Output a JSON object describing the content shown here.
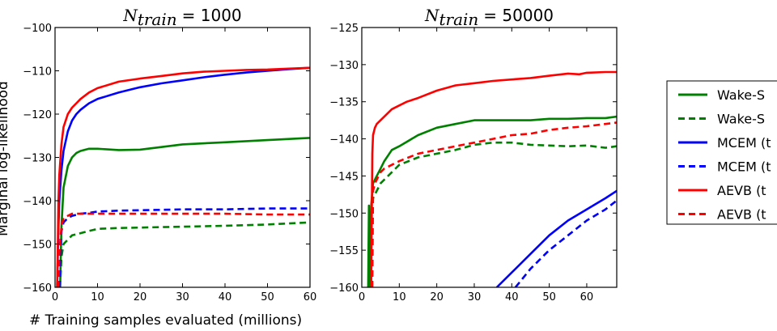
{
  "chart_data": [
    {
      "type": "line",
      "title_var": "N",
      "title_sub": "train",
      "title_value": "= 1000",
      "xlabel": "# Training samples evaluated (millions)",
      "ylabel": "Marginal log-likelihood",
      "xlim": [
        0,
        60
      ],
      "ylim": [
        -160,
        -100
      ],
      "xticks": [
        0,
        10,
        20,
        30,
        40,
        50,
        60
      ],
      "yticks": [
        -160,
        -150,
        -140,
        -130,
        -120,
        -110,
        -100
      ],
      "grid": false,
      "series": [
        {
          "name": "Wake-Sleep (test)",
          "color": "#008000",
          "dash": false,
          "x": [
            1.2,
            1.5,
            2,
            3,
            4,
            5,
            6,
            8,
            10,
            15,
            20,
            25,
            30,
            40,
            50,
            60
          ],
          "y": [
            -160,
            -146,
            -137,
            -132,
            -130,
            -129,
            -128.5,
            -128,
            -128,
            -128.3,
            -128.2,
            -127.6,
            -127,
            -126.5,
            -126,
            -125.5
          ]
        },
        {
          "name": "Wake-Sleep (train)",
          "color": "#008000",
          "dash": true,
          "x": [
            1.2,
            1.5,
            2,
            3,
            4,
            6,
            8,
            10,
            15,
            20,
            30,
            40,
            50,
            60
          ],
          "y": [
            -160,
            -153,
            -150,
            -149,
            -148,
            -147.5,
            -147,
            -146.5,
            -146.3,
            -146.2,
            -146,
            -145.8,
            -145.5,
            -145
          ]
        },
        {
          "name": "MCEM (test)",
          "color": "#0000ff",
          "dash": false,
          "x": [
            0.5,
            0.8,
            1,
            1.5,
            2,
            3,
            4,
            5,
            6,
            8,
            10,
            15,
            20,
            25,
            30,
            35,
            40,
            45,
            50,
            55,
            60
          ],
          "y": [
            -160,
            -146,
            -140,
            -133,
            -128.5,
            -124,
            -121.5,
            -120,
            -119,
            -117.5,
            -116.5,
            -115,
            -113.8,
            -112.9,
            -112.2,
            -111.5,
            -110.9,
            -110.4,
            -110,
            -109.6,
            -109.3
          ]
        },
        {
          "name": "MCEM (train)",
          "color": "#0000ff",
          "dash": true,
          "x": [
            1,
            1.5,
            2,
            3,
            4,
            6,
            8,
            10,
            15,
            20,
            30,
            40,
            50,
            60
          ],
          "y": [
            -160,
            -147,
            -145,
            -144,
            -143.5,
            -143,
            -142.8,
            -142.5,
            -142.3,
            -142.2,
            -142,
            -142,
            -141.8,
            -141.8
          ]
        },
        {
          "name": "AEVB (test)",
          "color": "#ff0000",
          "dash": false,
          "x": [
            0.5,
            0.8,
            1,
            1.5,
            2,
            3,
            4,
            5,
            6,
            8,
            10,
            15,
            20,
            25,
            30,
            35,
            40,
            45,
            50,
            55,
            60
          ],
          "y": [
            -160,
            -140,
            -134,
            -127,
            -123,
            -120,
            -118.5,
            -117.5,
            -116.5,
            -115,
            -114,
            -112.5,
            -111.8,
            -111.2,
            -110.6,
            -110.2,
            -110,
            -109.8,
            -109.7,
            -109.5,
            -109.3
          ]
        },
        {
          "name": "AEVB (train)",
          "color": "#ff0000",
          "dash": true,
          "x": [
            0.8,
            1,
            1.5,
            2,
            3,
            4,
            6,
            8,
            10,
            15,
            20,
            30,
            40,
            50,
            60
          ],
          "y": [
            -160,
            -152,
            -146,
            -144,
            -143.5,
            -143,
            -143,
            -143,
            -143,
            -143,
            -143,
            -143,
            -143,
            -143.2,
            -143.2
          ]
        }
      ]
    },
    {
      "type": "line",
      "title_var": "N",
      "title_sub": "train",
      "title_value": "= 50000",
      "xlim": [
        0,
        68
      ],
      "ylim": [
        -160,
        -125
      ],
      "xticks": [
        0,
        10,
        20,
        30,
        40,
        50,
        60
      ],
      "yticks": [
        -160,
        -155,
        -150,
        -145,
        -140,
        -135,
        -130,
        -125
      ],
      "grid": false,
      "series": [
        {
          "name": "Wake-Sleep (test)",
          "color": "#008000",
          "dash": false,
          "x": [
            1.7,
            1.9,
            2.2,
            2.5,
            3,
            4,
            5,
            6,
            8,
            10,
            15,
            20,
            25,
            30,
            35,
            40,
            45,
            50,
            55,
            60,
            65,
            68
          ],
          "y": [
            -160,
            -149,
            -160,
            -149,
            -146,
            -145,
            -144,
            -143,
            -141.5,
            -141,
            -139.5,
            -138.5,
            -138,
            -137.5,
            -137.5,
            -137.5,
            -137.5,
            -137.3,
            -137.3,
            -137.2,
            -137.2,
            -137
          ]
        },
        {
          "name": "Wake-Sleep (train)",
          "color": "#008000",
          "dash": true,
          "x": [
            2.5,
            2.8,
            3,
            4,
            5,
            6,
            8,
            10,
            15,
            20,
            25,
            30,
            35,
            40,
            45,
            50,
            55,
            60,
            65,
            68
          ],
          "y": [
            -160,
            -150,
            -148,
            -147,
            -146,
            -145.5,
            -144.5,
            -143.5,
            -142.5,
            -142,
            -141.5,
            -140.8,
            -140.5,
            -140.5,
            -140.8,
            -140.9,
            -141,
            -140.9,
            -141.2,
            -141
          ]
        },
        {
          "name": "MCEM (test)",
          "color": "#0000ff",
          "dash": false,
          "x": [
            36,
            40,
            45,
            50,
            55,
            60,
            65,
            68
          ],
          "y": [
            -160,
            -158,
            -155.5,
            -153,
            -151,
            -149.5,
            -148,
            -147
          ]
        },
        {
          "name": "MCEM (train)",
          "color": "#0000ff",
          "dash": true,
          "x": [
            41,
            45,
            50,
            55,
            60,
            65,
            68
          ],
          "y": [
            -160,
            -157.5,
            -155,
            -153,
            -151,
            -149.5,
            -148.3
          ]
        },
        {
          "name": "AEVB (test)",
          "color": "#ff0000",
          "dash": false,
          "x": [
            2.5,
            2.8,
            3,
            3.5,
            4,
            5,
            6,
            8,
            10,
            12,
            15,
            20,
            25,
            30,
            35,
            40,
            45,
            50,
            55,
            58,
            60,
            65,
            68
          ],
          "y": [
            -160,
            -142,
            -139.5,
            -138.5,
            -138,
            -137.5,
            -137,
            -136,
            -135.5,
            -135,
            -134.5,
            -133.5,
            -132.8,
            -132.5,
            -132.2,
            -132,
            -131.8,
            -131.5,
            -131.2,
            -131.3,
            -131.1,
            -131,
            -131
          ]
        },
        {
          "name": "AEVB (train)",
          "color": "#ff0000",
          "dash": true,
          "x": [
            2.8,
            3,
            3.5,
            4,
            5,
            6,
            8,
            10,
            15,
            20,
            25,
            30,
            35,
            40,
            45,
            50,
            55,
            60,
            65,
            68
          ],
          "y": [
            -160,
            -147,
            -146,
            -145.5,
            -144.5,
            -144,
            -143.5,
            -143,
            -142,
            -141.5,
            -141,
            -140.5,
            -140,
            -139.5,
            -139.3,
            -138.8,
            -138.5,
            -138.3,
            -138,
            -137.8
          ]
        }
      ]
    }
  ],
  "legend": {
    "placement": "right",
    "entries": [
      {
        "label": "Wake-S",
        "color": "#008000",
        "dash": false
      },
      {
        "label": "Wake-S",
        "color": "#008000",
        "dash": true
      },
      {
        "label": "MCEM (t",
        "color": "#0000ff",
        "dash": false
      },
      {
        "label": "MCEM (t",
        "color": "#0000ff",
        "dash": true
      },
      {
        "label": "AEVB (t",
        "color": "#ff0000",
        "dash": false
      },
      {
        "label": "AEVB (t",
        "color": "#ff0000",
        "dash": true
      }
    ]
  }
}
